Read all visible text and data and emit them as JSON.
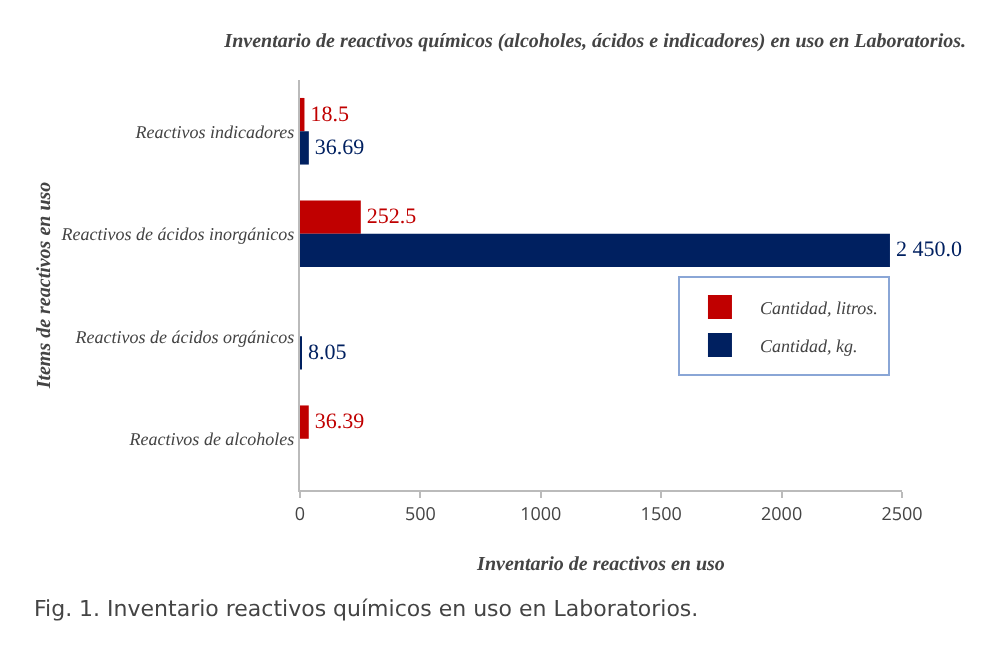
{
  "chart_data": {
    "type": "bar",
    "orientation": "horizontal",
    "title": "Inventario de reactivos químicos (alcoholes, ácidos e indicadores) en uso en Laboratorios.",
    "xlabel": "Inventario de reactivos en uso",
    "ylabel": "Items de reactivos en uso",
    "categories": [
      "Reactivos indicadores",
      "Reactivos de ácidos inorgánicos",
      "Reactivos de ácidos orgánicos",
      "Reactivos de alcoholes"
    ],
    "series": [
      {
        "name": "Cantidad, litros.",
        "color": "#c00000",
        "values": [
          18.5,
          252.5,
          null,
          36.39
        ],
        "value_labels": [
          "18.5",
          "252.5",
          null,
          "36.39"
        ]
      },
      {
        "name": "Cantidad, kg.",
        "color": "#002060",
        "values": [
          36.69,
          2450.0,
          8.05,
          null
        ],
        "value_labels": [
          "36.69",
          "2 450.0",
          "8.05",
          null
        ]
      }
    ],
    "xlim": [
      0,
      2500
    ],
    "xticks": [
      0,
      500,
      1000,
      1500,
      2000,
      2500
    ],
    "grid": false,
    "legend": "right",
    "annotations": [
      "Fig. 1. Inventario reactivos químicos en uso en Laboratorios."
    ]
  }
}
